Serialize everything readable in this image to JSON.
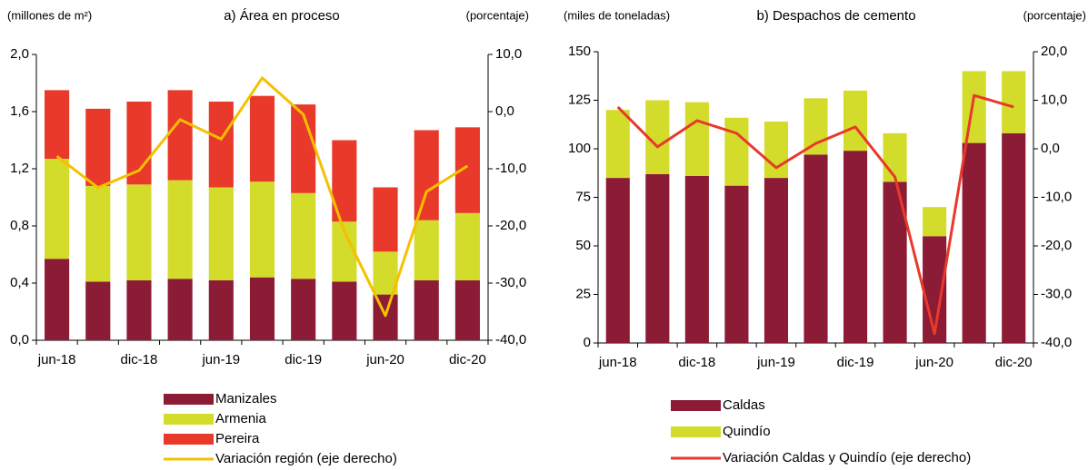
{
  "chart_data": [
    {
      "type": "bar",
      "stacked": true,
      "title": "a) Área en proceso",
      "ylabel": "(millones de m²)",
      "y2label": "(porcentaje)",
      "categories": [
        "jun-18",
        null,
        "dic-18",
        null,
        "jun-19",
        null,
        "dic-19",
        null,
        "jun-20",
        null,
        "dic-20"
      ],
      "series": [
        {
          "name": "Manizales",
          "color": "#8c1b36",
          "values": [
            0.57,
            0.41,
            0.42,
            0.43,
            0.42,
            0.44,
            0.43,
            0.41,
            0.32,
            0.42,
            0.42
          ]
        },
        {
          "name": "Armenia",
          "color": "#d3db2b",
          "values": [
            0.7,
            0.67,
            0.67,
            0.69,
            0.65,
            0.67,
            0.6,
            0.42,
            0.3,
            0.42,
            0.47
          ]
        },
        {
          "name": "Pereira",
          "color": "#e8392a",
          "values": [
            0.48,
            0.54,
            0.58,
            0.63,
            0.6,
            0.6,
            0.62,
            0.57,
            0.45,
            0.63,
            0.6
          ]
        },
        {
          "name": "Variación región (eje derecho)",
          "color": "#f5c000",
          "axis": "y2",
          "values": [
            -7.8,
            -13.3,
            -10.3,
            -1.4,
            -4.8,
            5.9,
            -0.5,
            -21.0,
            -35.7,
            -14.0,
            -9.5
          ]
        }
      ],
      "ylim": [
        0,
        2.0
      ],
      "yticks": [
        {
          "value": 0,
          "label": "0,0"
        },
        {
          "value": 0.4,
          "label": "0,4"
        },
        {
          "value": 0.8,
          "label": "0,8"
        },
        {
          "value": 1.2,
          "label": "1,2"
        },
        {
          "value": 1.6,
          "label": "1,6"
        },
        {
          "value": 2.0,
          "label": "2,0"
        }
      ],
      "y2lim": [
        -40,
        10
      ],
      "y2ticks": [
        {
          "value": -40,
          "label": "-40,0"
        },
        {
          "value": -30,
          "label": "-30,0"
        },
        {
          "value": -20,
          "label": "-20,0"
        },
        {
          "value": -10,
          "label": "-10,0"
        },
        {
          "value": 0,
          "label": "0,0"
        },
        {
          "value": 10,
          "label": "10,0"
        }
      ],
      "grid": false
    },
    {
      "type": "bar",
      "stacked": true,
      "title": "b) Despachos de cemento",
      "ylabel": "(miles de toneladas)",
      "y2label": "(porcentaje)",
      "categories": [
        "jun-18",
        null,
        "dic-18",
        null,
        "jun-19",
        null,
        "dic-19",
        null,
        "jun-20",
        null,
        "dic-20"
      ],
      "series": [
        {
          "name": "Caldas",
          "color": "#8c1b36",
          "values": [
            85,
            87,
            86,
            81,
            85,
            97,
            99,
            83,
            55,
            103,
            108
          ]
        },
        {
          "name": "Quindío",
          "color": "#d3db2b",
          "values": [
            35,
            38,
            38,
            35,
            29,
            29,
            31,
            25,
            15,
            37,
            32
          ]
        },
        {
          "name": "Variación Caldas y Quindío (eje derecho)",
          "color": "#e8392a",
          "axis": "y2",
          "values": [
            8.6,
            0.4,
            5.8,
            3.2,
            -3.9,
            1.1,
            4.5,
            -5.8,
            -38.1,
            11.0,
            8.6
          ]
        }
      ],
      "ylim": [
        0,
        150
      ],
      "yticks": [
        0,
        25,
        50,
        75,
        100,
        125,
        150
      ],
      "y2lim": [
        -40,
        20
      ],
      "y2ticks": [
        {
          "value": -40,
          "label": "-40,0"
        },
        {
          "value": -30,
          "label": "-30,0"
        },
        {
          "value": -20,
          "label": "-20,0"
        },
        {
          "value": -10,
          "label": "-10,0"
        },
        {
          "value": 0,
          "label": "0,0"
        },
        {
          "value": 10,
          "label": "10,0"
        },
        {
          "value": 20,
          "label": "20,0"
        }
      ],
      "grid": false
    }
  ]
}
